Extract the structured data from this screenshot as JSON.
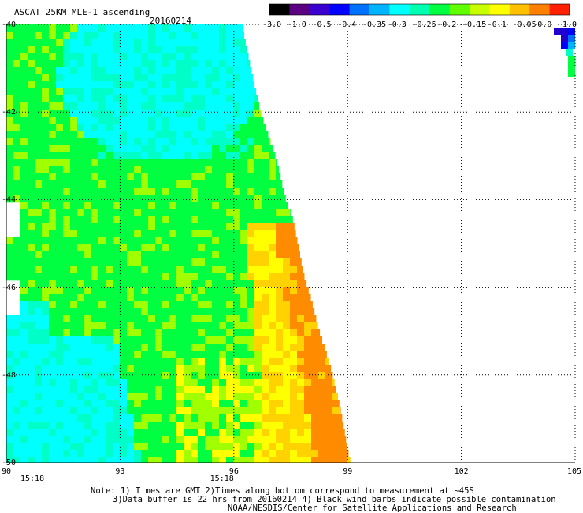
{
  "header": {
    "title": "ASCAT 25KM MLE-1 ascending",
    "date": "20160214"
  },
  "colorbar": {
    "labels": [
      "-3.0",
      "-1.0",
      "-0.5",
      "-0.4",
      "-0.35",
      "-0.3",
      "-0.25",
      "-0.2",
      "-0.15",
      "-0.1",
      "-0.05",
      "0.0",
      "1.0"
    ],
    "colors": [
      "#000000",
      "#5a0080",
      "#3a00d0",
      "#0000ff",
      "#0070ff",
      "#00b4ff",
      "#00ffff",
      "#00ffb0",
      "#00ff40",
      "#60ff00",
      "#c8ff00",
      "#ffff00",
      "#ffc000",
      "#ff8000",
      "#ff2000"
    ]
  },
  "map": {
    "x_ticks": [
      "90",
      "93",
      "96",
      "99",
      "102",
      "105"
    ],
    "y_ticks": [
      "-40",
      "-42",
      "-44",
      "-46",
      "-48",
      "-50"
    ],
    "lon_range": [
      90,
      105
    ],
    "lat_range": [
      -50,
      -40
    ],
    "time_labels": [
      "15:18",
      "15:18"
    ],
    "time_label_lons": [
      90,
      95
    ]
  },
  "notes": {
    "line1": "Note: 1) Times are GMT 2)Times along bottom correspond to measurement at ~45S",
    "line2": "3)Data buffer is 22 hrs from 20160214 4) Black wind barbs indicate possible contamination",
    "line3": "NOAA/NESDIS/Center for Satellite Applications and Research"
  },
  "palette": {
    "cyan": "#00ffff",
    "aqua": "#00ffc8",
    "green": "#00ff40",
    "yellowgreen": "#a0ff00",
    "yellow": "#ffff00",
    "gold": "#ffd200",
    "orange": "#ff8c00",
    "blue": "#0000ff",
    "darkblue": "#2000d0"
  }
}
